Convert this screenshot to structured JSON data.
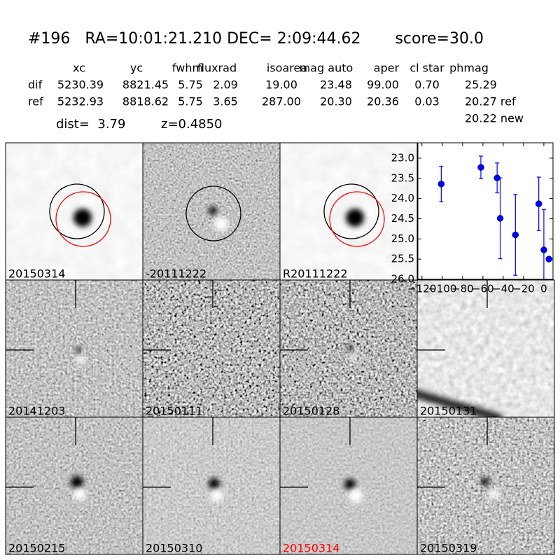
{
  "header": {
    "title": "#196   RA=10:01:21.210 DEC= 2:09:44.62       score=30.0"
  },
  "table": {
    "columns": [
      "xc",
      "yc",
      "fwhm",
      "fluxrad",
      "isoarea",
      "mag auto",
      "aper",
      "cl star",
      "phmag"
    ],
    "rows": [
      [
        "dif",
        "5230.39",
        "8821.45",
        "5.75",
        "2.09",
        "19.00",
        "23.48",
        "99.00",
        "0.70",
        "25.29"
      ],
      [
        "ref",
        "5232.93",
        "8818.62",
        "5.75",
        "3.65",
        "287.00",
        "20.30",
        "20.36",
        "0.03",
        "20.27 ref"
      ]
    ],
    "extra": "20.22 new"
  },
  "dist": "dist=  3.79",
  "z": "z=0.4850",
  "stamps": [
    {
      "label": "20150314"
    },
    {
      "label": "-20111222"
    },
    {
      "label": "R20111222"
    },
    {
      "label": "20141203"
    },
    {
      "label": "20150111"
    },
    {
      "label": "20150128"
    },
    {
      "label": "20150131"
    },
    {
      "label": "20150215"
    },
    {
      "label": "20150310"
    },
    {
      "label": "20150314",
      "label_color": "#ff0000"
    },
    {
      "label": "20150319"
    }
  ],
  "chart_data": {
    "type": "errorbar",
    "color": "#0000ff",
    "x": [
      -101,
      -62,
      -46,
      -43,
      -28,
      -5,
      0,
      5
    ],
    "values": [
      23.64,
      23.23,
      23.49,
      24.49,
      24.9,
      24.13,
      25.27,
      25.5
    ],
    "errors": [
      0.44,
      0.28,
      0.37,
      1.0,
      1.0,
      0.66,
      1.0,
      0.05
    ],
    "xlim": [
      -124,
      9
    ],
    "ylim": [
      26.0,
      22.62
    ],
    "xticks": [
      {
        "value": -120,
        "label": "−120"
      },
      {
        "value": -100,
        "label": "−100"
      },
      {
        "value": -80,
        "label": "−80"
      },
      {
        "value": -60,
        "label": "−60"
      },
      {
        "value": -40,
        "label": "−40"
      },
      {
        "value": -20,
        "label": "−20"
      },
      0
    ],
    "yticks": [
      {
        "value": 23,
        "label": "23.0"
      },
      {
        "value": 23.5,
        "label": "23.5"
      },
      {
        "value": 24,
        "label": "24.0"
      },
      {
        "value": 24.5,
        "label": "24.5"
      },
      {
        "value": 25,
        "label": "25.0"
      },
      {
        "value": 25.5,
        "label": "25.5"
      },
      {
        "value": 26,
        "label": "26.0"
      }
    ]
  }
}
